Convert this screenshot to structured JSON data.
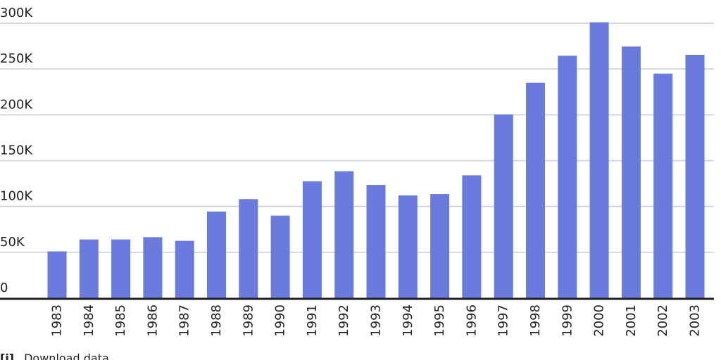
{
  "chart_data": {
    "type": "bar",
    "categories": [
      "1983",
      "1984",
      "1985",
      "1986",
      "1987",
      "1988",
      "1989",
      "1990",
      "1991",
      "1992",
      "1993",
      "1994",
      "1995",
      "1996",
      "1997",
      "1998",
      "1999",
      "2000",
      "2001",
      "2002",
      "2003"
    ],
    "values": [
      51000,
      64000,
      64000,
      66500,
      62500,
      94500,
      108000,
      90000,
      127500,
      138500,
      123500,
      112000,
      113500,
      134000,
      200500,
      235000,
      264500,
      301000,
      274500,
      245000,
      265500
    ],
    "ylim": [
      0,
      300000
    ],
    "yticks": [
      0,
      50000,
      100000,
      150000,
      200000,
      250000,
      300000
    ],
    "ytick_labels": [
      "0",
      "50K",
      "100K",
      "150K",
      "200K",
      "250K",
      "300K"
    ],
    "grid": true,
    "bar_color": "#6a7bdd",
    "grid_color": "#cccccc",
    "baseline_color": "#222222"
  },
  "footer": {
    "icon": "[i]",
    "text": "Download data"
  }
}
